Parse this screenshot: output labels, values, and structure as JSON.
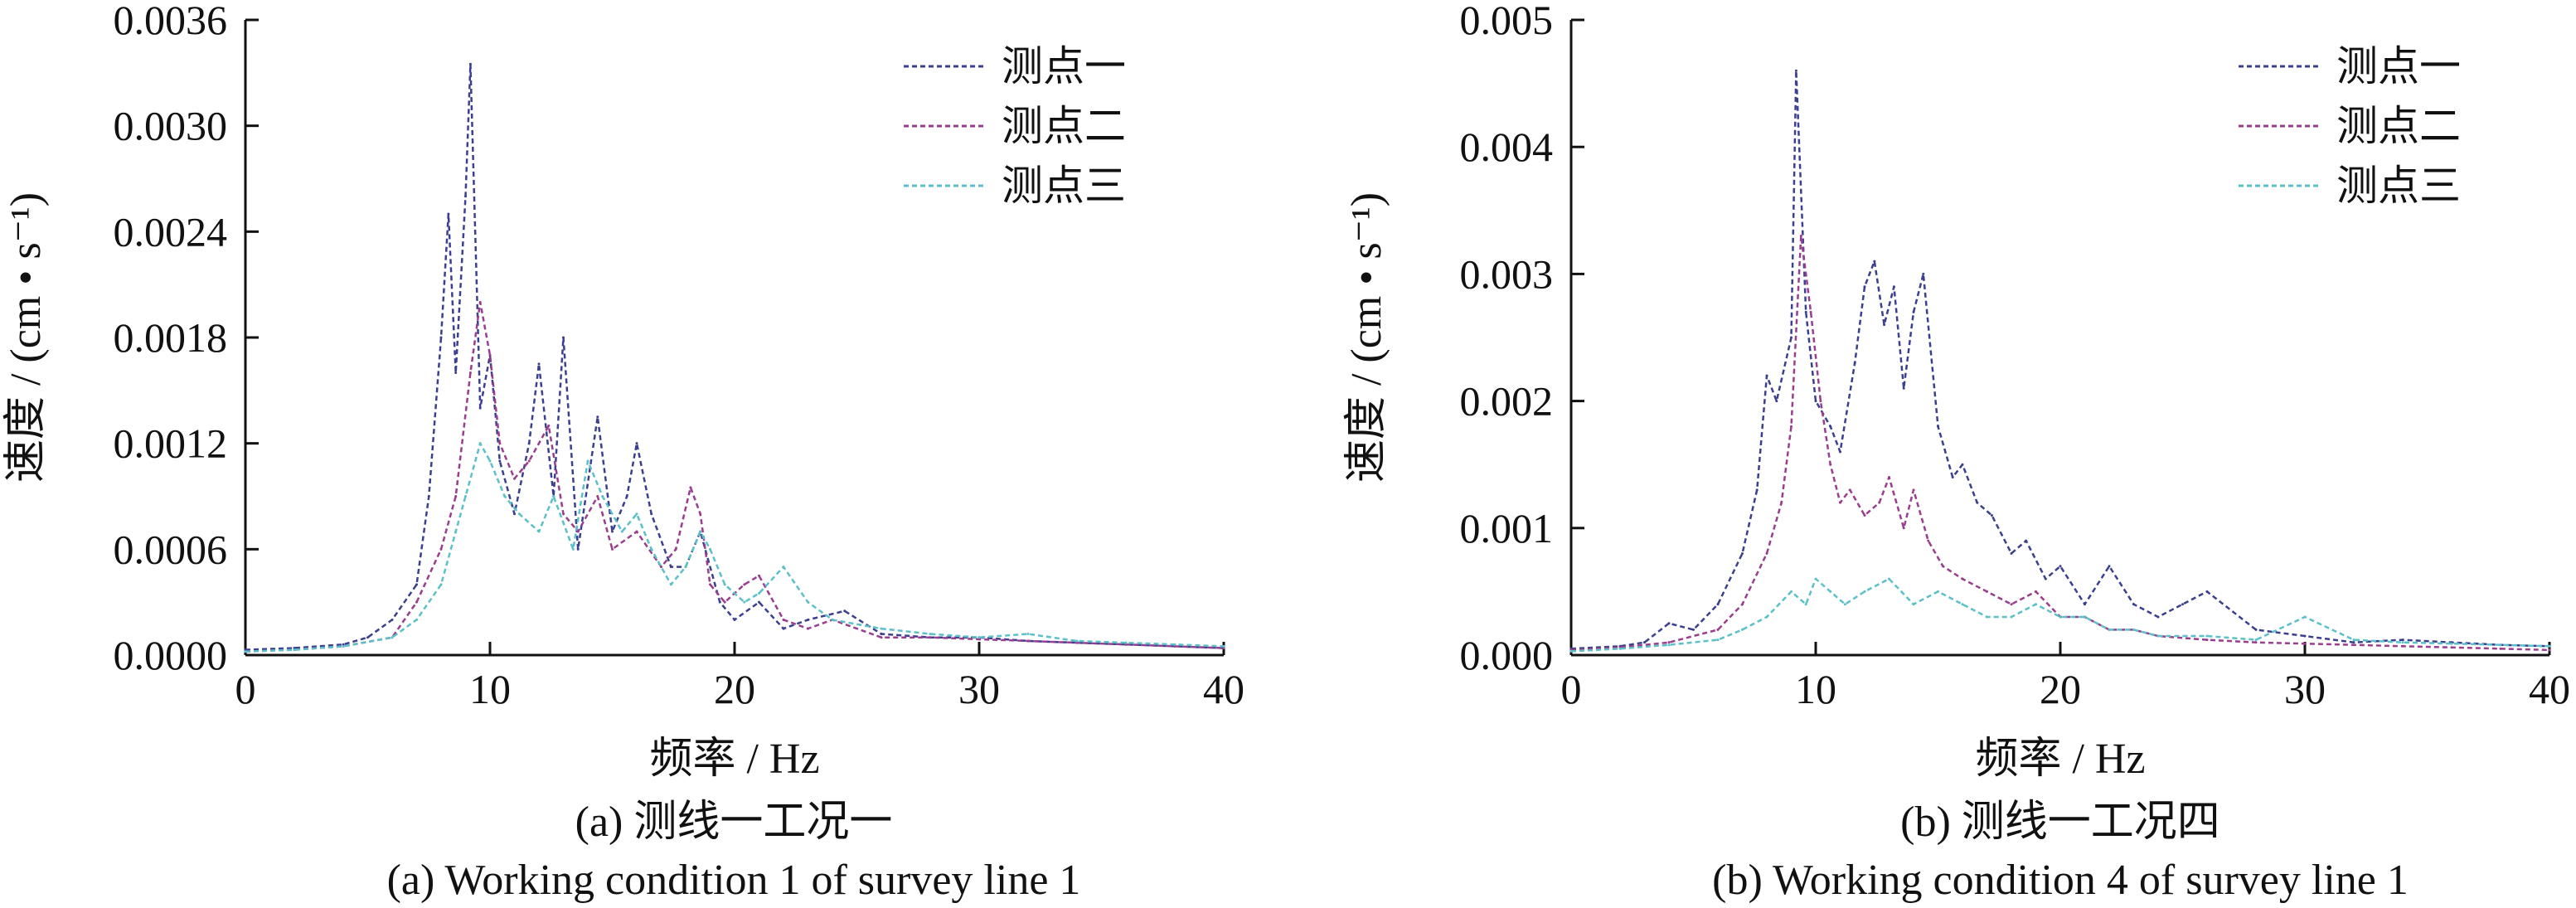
{
  "chart_data": [
    {
      "type": "line",
      "caption_cn": "(a) 测线一工况一",
      "caption_en": "(a) Working condition 1 of survey line 1",
      "xlabel": "频率 / Hz",
      "ylabel": "速度 / (cm • s⁻¹)",
      "xlim": [
        0,
        40
      ],
      "ylim": [
        0,
        0.0036
      ],
      "xticks": [
        "0",
        "10",
        "20",
        "30",
        "40"
      ],
      "yticks": [
        "0.0000",
        "0.0006",
        "0.0012",
        "0.0018",
        "0.0024",
        "0.0030",
        "0.0036"
      ],
      "legend_position": "top-right",
      "grid": false,
      "series": [
        {
          "name": "测点一",
          "color": "#3b3f8f",
          "x": [
            0,
            2,
            4,
            5,
            6,
            7,
            7.5,
            8,
            8.3,
            8.6,
            9,
            9.2,
            9.6,
            10,
            10.4,
            11,
            11.6,
            12,
            12.6,
            13,
            13.6,
            14.4,
            15,
            15.6,
            16,
            16.6,
            17.4,
            18,
            18.6,
            19.4,
            20,
            21,
            22,
            23,
            24.5,
            26,
            28,
            30,
            32,
            34,
            36,
            38,
            40
          ],
          "values": [
            3e-05,
            4e-05,
            6e-05,
            0.0001,
            0.0002,
            0.0004,
            0.0009,
            0.0018,
            0.0025,
            0.0016,
            0.0026,
            0.00335,
            0.0014,
            0.0017,
            0.0011,
            0.0008,
            0.0012,
            0.00165,
            0.0009,
            0.0018,
            0.0006,
            0.00135,
            0.0007,
            0.0009,
            0.0012,
            0.0008,
            0.0005,
            0.0005,
            0.0007,
            0.0003,
            0.0002,
            0.0003,
            0.00015,
            0.0002,
            0.00025,
            0.00012,
            0.0001,
            0.0001,
            8e-05,
            7e-05,
            6e-05,
            5e-05,
            4e-05
          ]
        },
        {
          "name": "测点二",
          "color": "#9a3d8e",
          "x": [
            0,
            2,
            4,
            6,
            7,
            8,
            8.6,
            9.2,
            9.6,
            10,
            10.4,
            11,
            11.6,
            12.4,
            13,
            13.6,
            14.4,
            15,
            16,
            17,
            17.6,
            18.2,
            18.6,
            19,
            19.6,
            20.4,
            21,
            22,
            23,
            24,
            26,
            28,
            30,
            32,
            34,
            36,
            38,
            40
          ],
          "values": [
            2e-05,
            3e-05,
            5e-05,
            0.0001,
            0.0003,
            0.0006,
            0.0009,
            0.0016,
            0.002,
            0.0017,
            0.0012,
            0.001,
            0.0011,
            0.0013,
            0.0008,
            0.0007,
            0.0009,
            0.0006,
            0.0007,
            0.0005,
            0.0006,
            0.00095,
            0.0008,
            0.0004,
            0.0003,
            0.0004,
            0.00045,
            0.0002,
            0.00015,
            0.0002,
            0.0001,
            0.0001,
            9e-05,
            8e-05,
            7e-05,
            6e-05,
            5e-05,
            4e-05
          ]
        },
        {
          "name": "测点三",
          "color": "#5bc0c8",
          "x": [
            0,
            2,
            4,
            6,
            7,
            8,
            8.6,
            9,
            9.6,
            10,
            10.6,
            11.2,
            12,
            12.6,
            13.4,
            14,
            14.6,
            15.4,
            16,
            16.6,
            17.4,
            18,
            18.6,
            19,
            19.6,
            20.4,
            21,
            22,
            23,
            24,
            26,
            28,
            30,
            32,
            34,
            36,
            38,
            40
          ],
          "values": [
            2e-05,
            3e-05,
            5e-05,
            0.0001,
            0.0002,
            0.0004,
            0.0007,
            0.0009,
            0.0012,
            0.0011,
            0.0009,
            0.0008,
            0.0007,
            0.0009,
            0.0006,
            0.0011,
            0.0009,
            0.0007,
            0.0008,
            0.0006,
            0.0004,
            0.0005,
            0.0007,
            0.0006,
            0.0004,
            0.0003,
            0.00035,
            0.0005,
            0.0003,
            0.0002,
            0.00015,
            0.00012,
            0.0001,
            0.00012,
            8e-05,
            7e-05,
            6e-05,
            5e-05
          ]
        }
      ]
    },
    {
      "type": "line",
      "caption_cn": "(b) 测线一工况四",
      "caption_en": "(b) Working condition 4 of survey line 1",
      "xlabel": "频率 / Hz",
      "ylabel": "速度 / (cm • s⁻¹)",
      "xlim": [
        0,
        40
      ],
      "ylim": [
        0,
        0.005
      ],
      "xticks": [
        "0",
        "10",
        "20",
        "30",
        "40"
      ],
      "yticks": [
        "0.000",
        "0.001",
        "0.002",
        "0.003",
        "0.004",
        "0.005"
      ],
      "legend_position": "top-right",
      "grid": false,
      "series": [
        {
          "name": "测点一",
          "color": "#3b3f8f",
          "x": [
            0,
            2,
            3,
            4,
            5,
            6,
            7,
            7.6,
            8,
            8.4,
            9,
            9.2,
            9.6,
            10,
            10.6,
            11,
            11.6,
            12,
            12.4,
            12.8,
            13.2,
            13.6,
            14,
            14.4,
            15,
            15.6,
            16,
            16.6,
            17.2,
            18,
            18.6,
            19.4,
            20,
            21,
            22,
            23,
            24,
            25,
            26,
            28,
            30,
            32,
            34,
            36,
            38,
            40
          ],
          "values": [
            5e-05,
            7e-05,
            0.0001,
            0.00025,
            0.0002,
            0.0004,
            0.0008,
            0.0013,
            0.0022,
            0.002,
            0.0025,
            0.0046,
            0.0027,
            0.002,
            0.0018,
            0.0016,
            0.0023,
            0.0029,
            0.0031,
            0.0026,
            0.0029,
            0.0021,
            0.0027,
            0.003,
            0.0018,
            0.0014,
            0.0015,
            0.0012,
            0.0011,
            0.0008,
            0.0009,
            0.0006,
            0.0007,
            0.0004,
            0.0007,
            0.0004,
            0.0003,
            0.0004,
            0.0005,
            0.0002,
            0.00015,
            0.0001,
            0.00012,
            0.0001,
            8e-05,
            7e-05
          ]
        },
        {
          "name": "测点二",
          "color": "#9a3d8e",
          "x": [
            0,
            2,
            4,
            6,
            7,
            8,
            8.6,
            9,
            9.4,
            9.8,
            10.2,
            10.6,
            11,
            11.4,
            12,
            12.6,
            13,
            13.6,
            14,
            14.6,
            15.2,
            16,
            17,
            18,
            19,
            20,
            21,
            22,
            23,
            24,
            26,
            28,
            30,
            32,
            34,
            36,
            38,
            40
          ],
          "values": [
            4e-05,
            6e-05,
            0.0001,
            0.0002,
            0.0004,
            0.0008,
            0.0012,
            0.0018,
            0.0033,
            0.0027,
            0.002,
            0.0015,
            0.0012,
            0.0013,
            0.0011,
            0.0012,
            0.0014,
            0.001,
            0.0013,
            0.0009,
            0.0007,
            0.0006,
            0.0005,
            0.0004,
            0.0005,
            0.0003,
            0.0003,
            0.0002,
            0.0002,
            0.00015,
            0.00012,
            0.0001,
            9e-05,
            8e-05,
            7e-05,
            6e-05,
            5e-05,
            4e-05
          ]
        },
        {
          "name": "测点三",
          "color": "#5bc0c8",
          "x": [
            0,
            2,
            4,
            6,
            7,
            8,
            9,
            9.6,
            10,
            10.6,
            11.2,
            12,
            13,
            14,
            15,
            16,
            17,
            18,
            19,
            20,
            21,
            22,
            23,
            24,
            26,
            28,
            30,
            32,
            34,
            36,
            38,
            40
          ],
          "values": [
            3e-05,
            5e-05,
            8e-05,
            0.00012,
            0.0002,
            0.0003,
            0.0005,
            0.0004,
            0.0006,
            0.0005,
            0.0004,
            0.0005,
            0.0006,
            0.0004,
            0.0005,
            0.0004,
            0.0003,
            0.0003,
            0.0004,
            0.0003,
            0.0003,
            0.0002,
            0.0002,
            0.00015,
            0.00015,
            0.00012,
            0.0003,
            0.00012,
            0.0001,
            9e-05,
            8e-05,
            7e-05
          ]
        }
      ]
    }
  ]
}
